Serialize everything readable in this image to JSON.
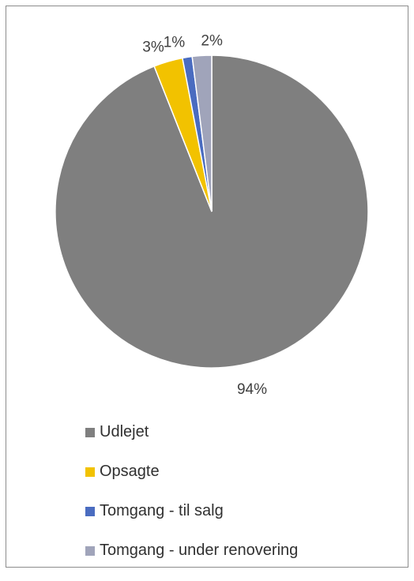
{
  "chart_data": {
    "type": "pie",
    "categories": [
      "Udlejet",
      "Opsagte",
      "Tomgang - til salg",
      "Tomgang - under renovering"
    ],
    "values": [
      94,
      3,
      1,
      2
    ],
    "data_labels": [
      "94%",
      "3%",
      "1%",
      "2%"
    ],
    "colors": [
      "#7f7f7f",
      "#f2c200",
      "#4a6cc0",
      "#a0a4ba"
    ],
    "legend_position": "bottom"
  }
}
